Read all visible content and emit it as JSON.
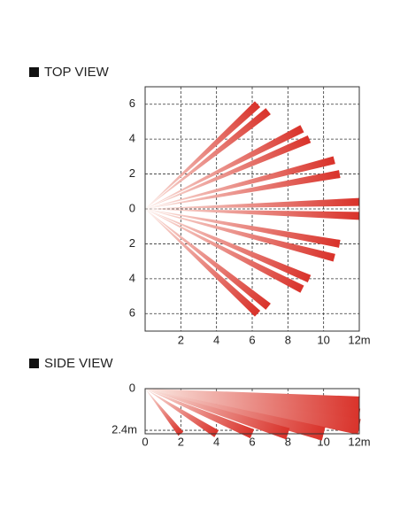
{
  "chart_data": [
    {
      "type": "beam",
      "title": "TOP VIEW",
      "xlim": [
        0,
        12
      ],
      "ylim": [
        -7,
        7
      ],
      "xticks": [
        2,
        4,
        6,
        8,
        10,
        {
          "value": 12,
          "label": "12m"
        }
      ],
      "yticks": [
        6,
        4,
        2,
        0,
        {
          "value": -2,
          "label": "2"
        },
        {
          "value": -4,
          "label": "4"
        },
        {
          "value": -6,
          "label": "6"
        }
      ],
      "grid": true,
      "color": "#d9322a",
      "x": [
        6.3,
        6.9,
        8.8,
        9.2,
        10.6,
        10.9,
        12,
        12,
        10.9,
        10.6,
        9.2,
        8.8,
        6.9,
        6.3
      ],
      "values": [
        6.0,
        5.6,
        4.6,
        4.0,
        2.8,
        2.0,
        0.4,
        -0.4,
        -2.0,
        -2.8,
        -4.0,
        -4.6,
        -5.6,
        -6.0
      ]
    },
    {
      "type": "beam",
      "title": "SIDE VIEW",
      "xlim": [
        0,
        12
      ],
      "ylim": [
        2.6,
        0
      ],
      "xticks": [
        0,
        2,
        4,
        6,
        8,
        10,
        {
          "value": 12,
          "label": "12m"
        }
      ],
      "yticks": [
        0,
        {
          "value": 2.4,
          "label": "2.4m"
        }
      ],
      "grid": true,
      "color": "#d9322a",
      "x": [
        12,
        12,
        12,
        10,
        8,
        6,
        4,
        2
      ],
      "values": [
        0.9,
        1.6,
        2.2,
        2.6,
        2.6,
        2.6,
        2.6,
        2.6
      ]
    }
  ]
}
